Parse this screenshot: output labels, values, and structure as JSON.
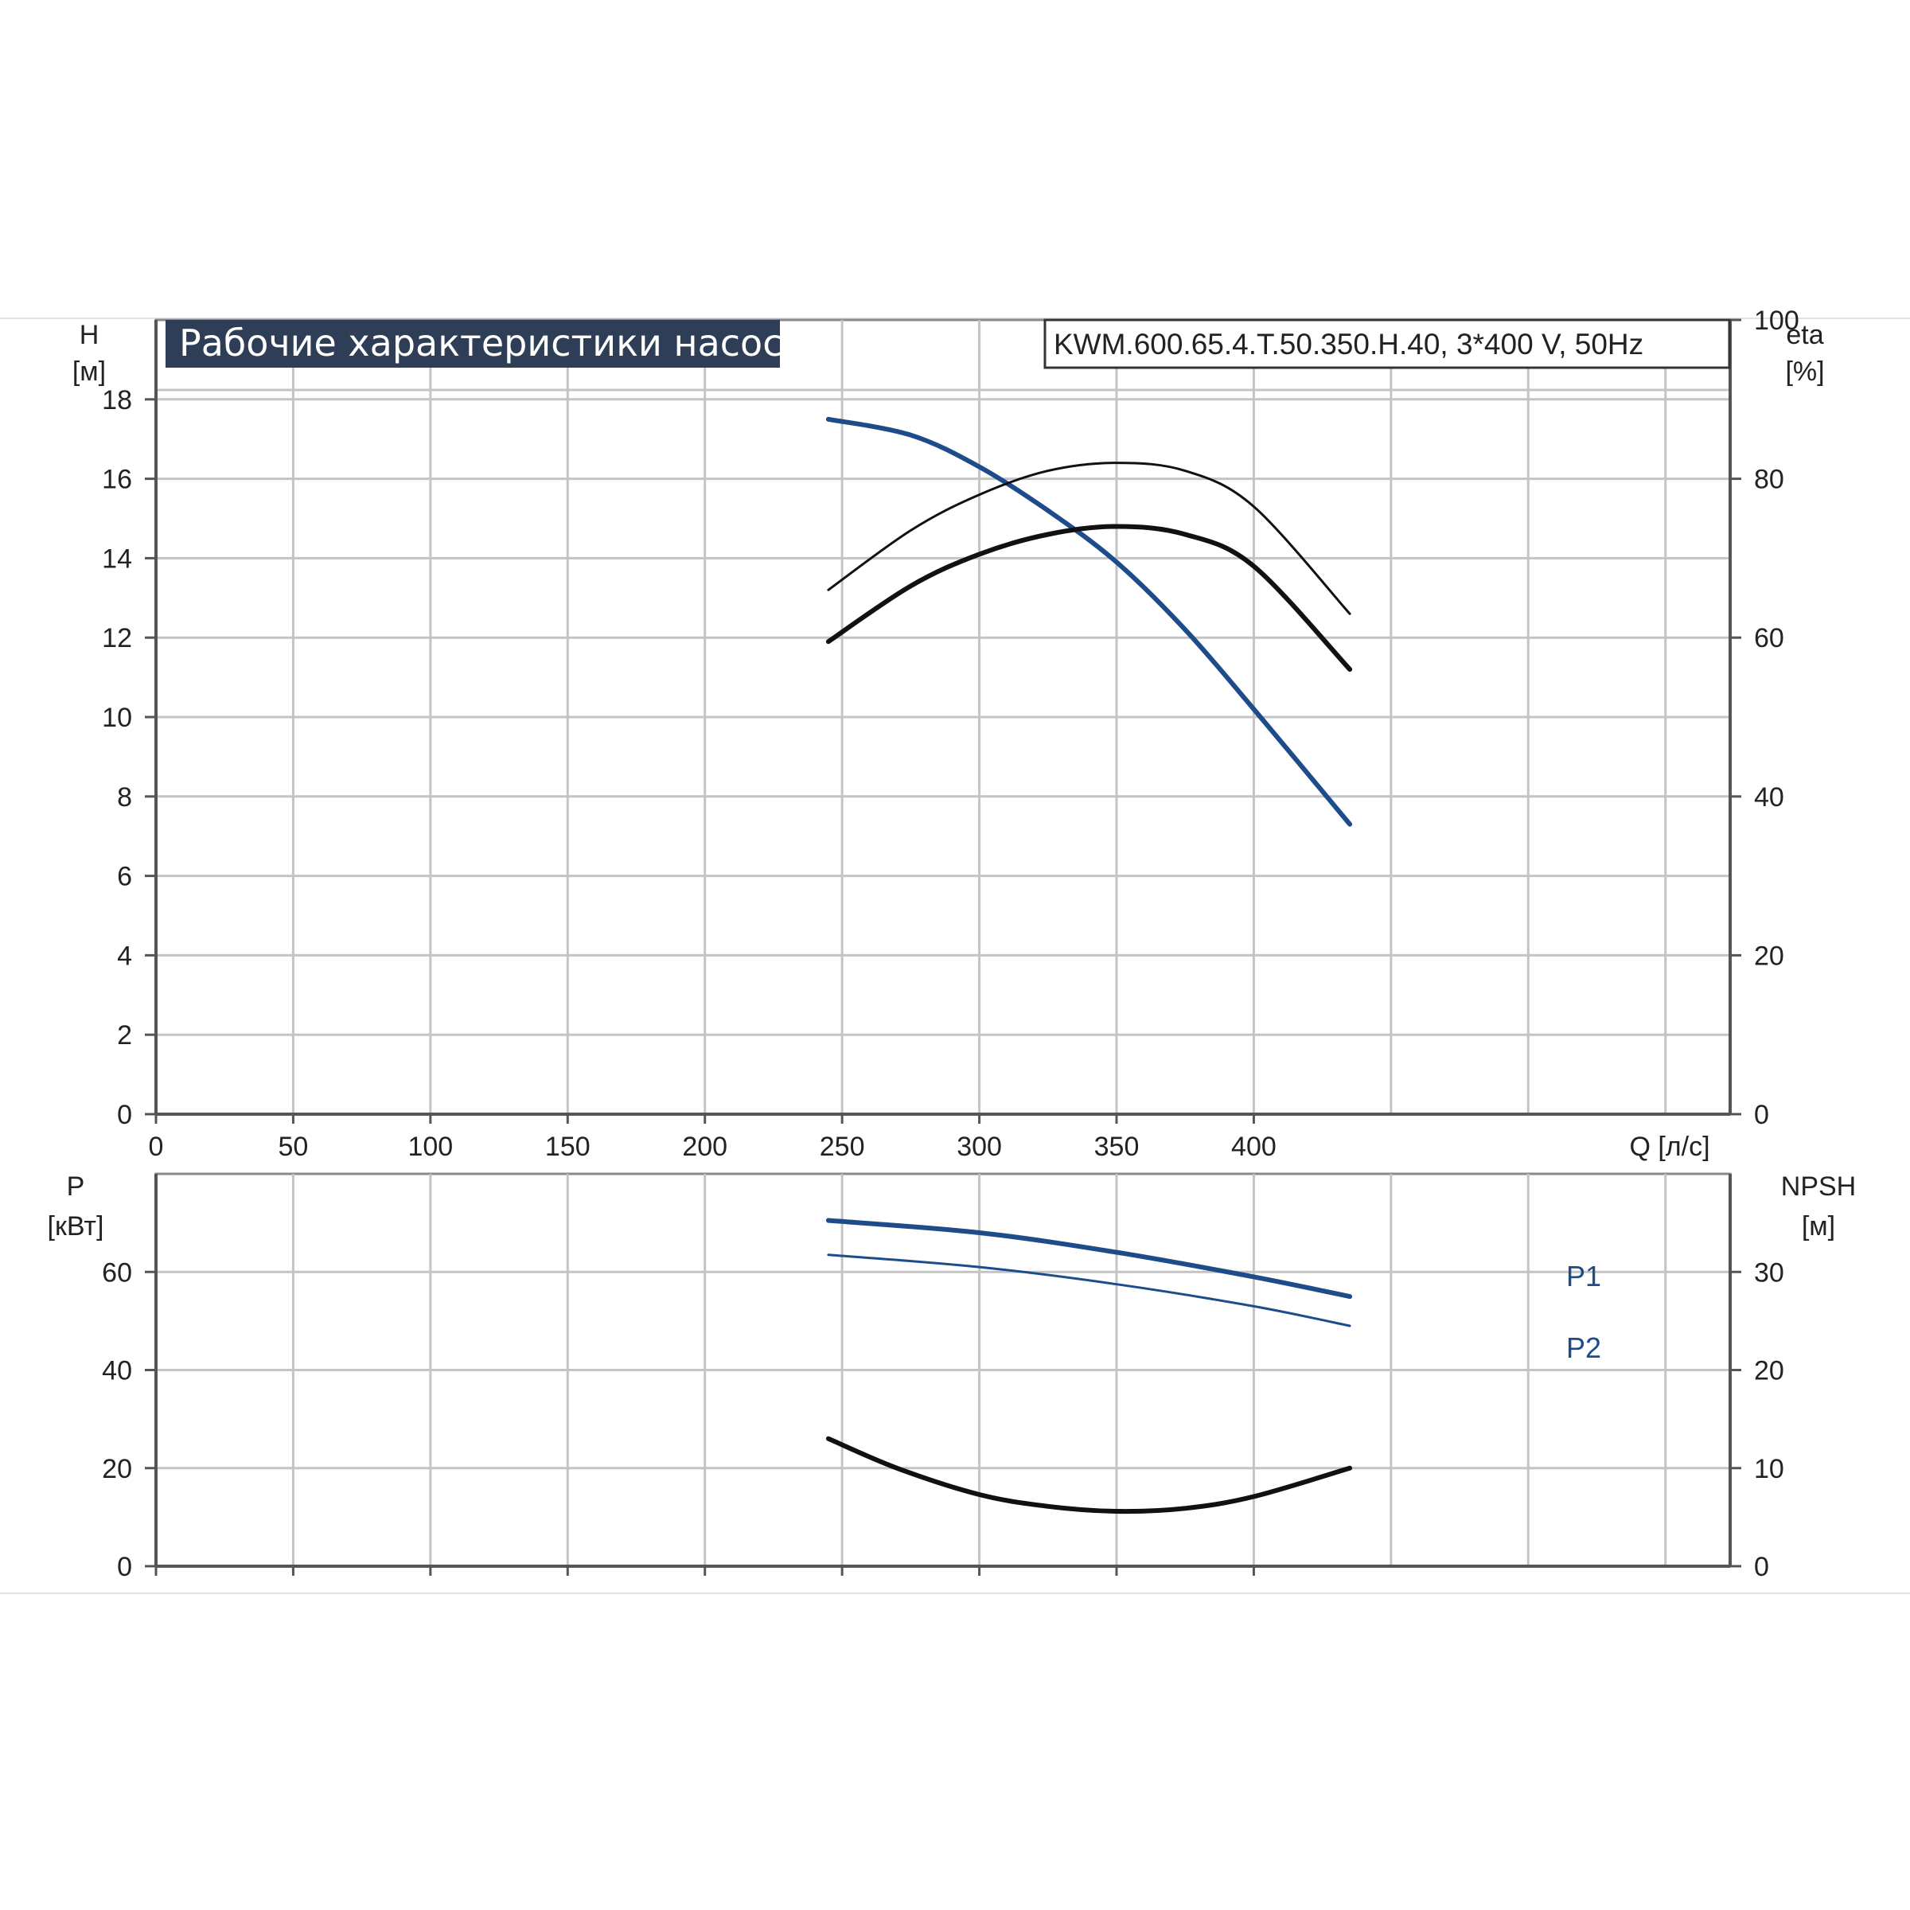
{
  "colors": {
    "blue": "#1e4c8a",
    "black": "#111111",
    "title_bg": "#2e3e56"
  },
  "header": {
    "title": "Рабочие характеристики насоса",
    "model": "KWM.600.65.4.T.50.350.H.40, 3*400 V, 50Hz"
  },
  "chart_data": [
    {
      "type": "line",
      "x_axis": {
        "label": "Q [л/с]",
        "range": [
          0,
          450
        ],
        "ticks": [
          "0",
          "50",
          "100",
          "150",
          "200",
          "250",
          "300",
          "350",
          "400"
        ]
      },
      "left_axis": {
        "label_line1": "H",
        "label_line2": "[м]",
        "range": [
          0,
          20
        ],
        "ticks": [
          "0",
          "2",
          "4",
          "6",
          "8",
          "10",
          "12",
          "14",
          "16",
          "18"
        ]
      },
      "right_axis": {
        "label_line1": "eta",
        "label_line2": "[%]",
        "range": [
          0,
          100
        ],
        "ticks": [
          "0",
          "20",
          "40",
          "60",
          "80",
          "100"
        ]
      },
      "grid": true,
      "series": [
        {
          "axis": "left",
          "color": "#1e4c8a",
          "width": 6,
          "x": [
            245,
            275,
            300,
            325,
            350,
            375,
            400,
            435
          ],
          "y": [
            17.5,
            17.1,
            16.3,
            15.2,
            13.9,
            12.2,
            10.2,
            7.3
          ]
        },
        {
          "axis": "right",
          "color": "#111111",
          "width": 3,
          "x": [
            245,
            275,
            300,
            325,
            350,
            375,
            400,
            435
          ],
          "y": [
            66,
            73.5,
            78,
            81,
            82,
            81,
            76.5,
            63
          ]
        },
        {
          "axis": "right",
          "color": "#111111",
          "width": 6,
          "x": [
            245,
            275,
            300,
            325,
            350,
            375,
            400,
            435
          ],
          "y": [
            59.5,
            66.5,
            70.5,
            73,
            74,
            73,
            69,
            56
          ]
        }
      ]
    },
    {
      "type": "line",
      "x_axis": {
        "range": [
          0,
          450
        ],
        "ticks": [
          "0",
          "50",
          "100",
          "150",
          "200",
          "250",
          "300",
          "350",
          "400"
        ]
      },
      "left_axis": {
        "label_line1": "P",
        "label_line2": "[кВт]",
        "range": [
          0,
          80
        ],
        "ticks": [
          "0",
          "20",
          "40",
          "60"
        ]
      },
      "right_axis": {
        "label_line1": "NPSH",
        "label_line2": "[м]",
        "range": [
          0,
          40
        ],
        "ticks": [
          "0",
          "10",
          "20",
          "30"
        ]
      },
      "grid": true,
      "series": [
        {
          "name": "P1",
          "axis": "left",
          "color": "#1e4c8a",
          "width": 6,
          "x": [
            245,
            300,
            350,
            400,
            435
          ],
          "y": [
            70.5,
            68,
            64,
            59,
            55
          ]
        },
        {
          "name": "P2",
          "axis": "left",
          "color": "#1e4c8a",
          "width": 3,
          "x": [
            245,
            300,
            350,
            400,
            435
          ],
          "y": [
            63.5,
            61,
            57.5,
            53,
            49
          ]
        },
        {
          "axis": "right",
          "color": "#111111",
          "width": 6,
          "x": [
            245,
            270,
            300,
            325,
            350,
            375,
            400,
            435
          ],
          "y": [
            13,
            10,
            7.3,
            6.1,
            5.6,
            5.9,
            7.1,
            10
          ]
        }
      ]
    }
  ]
}
